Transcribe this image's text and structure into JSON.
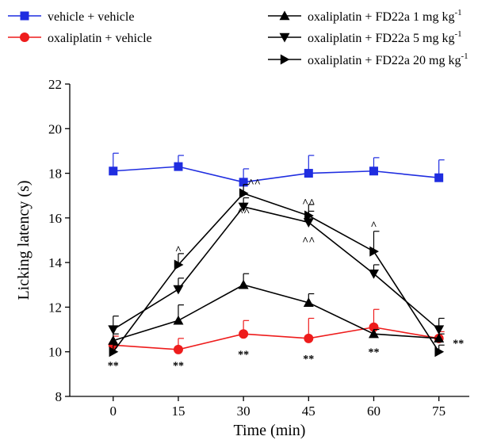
{
  "chart_data": {
    "type": "line",
    "xlabel": "Time (min)",
    "ylabel": "Licking latency (s)",
    "x": [
      0,
      15,
      30,
      45,
      60,
      75
    ],
    "xlim": [
      -10,
      82
    ],
    "ylim": [
      8,
      22
    ],
    "xticks": [
      0,
      15,
      30,
      45,
      60,
      75
    ],
    "yticks": [
      8,
      10,
      12,
      14,
      16,
      18,
      20,
      22
    ],
    "grid": false,
    "legend_position": "top",
    "series": [
      {
        "key": "vv",
        "name": "vehicle + vehicle",
        "color": "#1f2de0",
        "marker": "square",
        "values": [
          18.1,
          18.3,
          17.6,
          18.0,
          18.1,
          17.8
        ],
        "err": [
          0.8,
          0.5,
          0.6,
          0.8,
          0.6,
          0.8
        ]
      },
      {
        "key": "ov",
        "name": "oxaliplatin + vehicle",
        "color": "#ee1c1c",
        "marker": "circle",
        "values": [
          10.3,
          10.1,
          10.8,
          10.6,
          11.1,
          10.6
        ],
        "err": [
          0.4,
          0.5,
          0.6,
          0.9,
          0.8,
          0.3
        ]
      },
      {
        "key": "f1",
        "name": "oxaliplatin + FD22a 1 mg kg",
        "sup": "-1",
        "color": "#000000",
        "marker": "triangle-up",
        "values": [
          10.5,
          11.4,
          13.0,
          12.2,
          10.8,
          10.6
        ],
        "err": [
          0.3,
          0.7,
          0.5,
          0.4,
          0.2,
          0.2
        ]
      },
      {
        "key": "f5",
        "name": "oxaliplatin + FD22a 5 mg kg",
        "sup": "-1",
        "color": "#000000",
        "marker": "triangle-down",
        "values": [
          11.0,
          12.8,
          16.5,
          15.8,
          13.5,
          11.0
        ],
        "err": [
          0.6,
          0.5,
          0.4,
          0.5,
          0.4,
          0.5
        ]
      },
      {
        "key": "f20",
        "name": "oxaliplatin + FD22a 20 mg kg",
        "sup": "-1",
        "color": "#000000",
        "marker": "triangle-right",
        "values": [
          10.0,
          13.9,
          17.1,
          16.1,
          14.5,
          10.0
        ],
        "err": [
          0.3,
          0.5,
          0.4,
          0.5,
          0.9,
          0.3
        ]
      }
    ],
    "annotations": [
      {
        "text": "**",
        "x": 0,
        "y": 9.4
      },
      {
        "text": "**",
        "x": 15,
        "y": 9.4
      },
      {
        "text": "**",
        "x": 30,
        "y": 9.9
      },
      {
        "text": "**",
        "x": 45,
        "y": 9.7
      },
      {
        "text": "**",
        "x": 60,
        "y": 10.0
      },
      {
        "text": "**",
        "x": 79.5,
        "y": 10.4
      },
      {
        "text": "^",
        "x": 15,
        "y": 14.6
      },
      {
        "text": "^^",
        "x": 32.5,
        "y": 17.6
      },
      {
        "text": "^^",
        "x": 30,
        "y": 16.3
      },
      {
        "text": "^^",
        "x": 45,
        "y": 16.7
      },
      {
        "text": "^^",
        "x": 45,
        "y": 15.0
      },
      {
        "text": "^",
        "x": 60,
        "y": 15.7
      }
    ]
  }
}
